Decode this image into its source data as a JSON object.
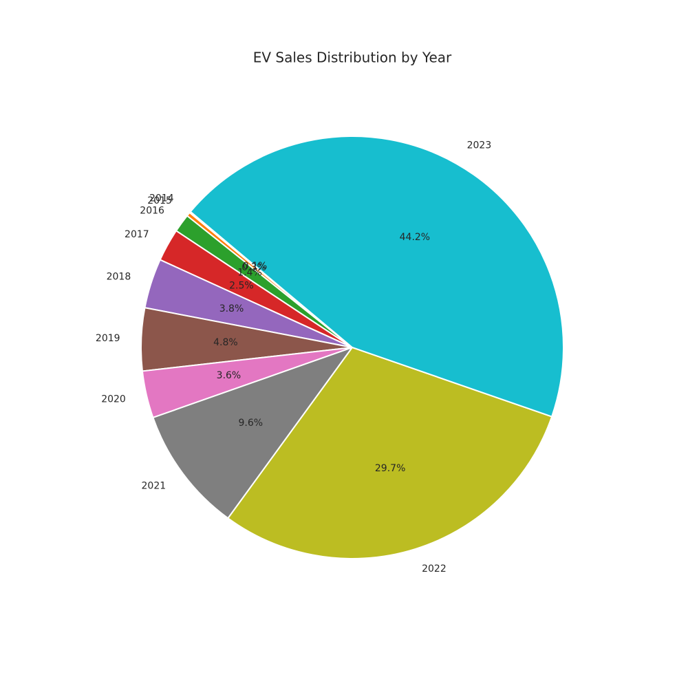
{
  "chart_data": {
    "type": "pie",
    "title": "EV Sales Distribution by Year",
    "categories": [
      "2014",
      "2015",
      "2016",
      "2017",
      "2018",
      "2019",
      "2020",
      "2021",
      "2022",
      "2023"
    ],
    "values": [
      0.1,
      0.3,
      1.4,
      2.5,
      3.8,
      4.8,
      3.6,
      9.6,
      29.7,
      44.2
    ],
    "value_labels": [
      "0.1%",
      "0.3%",
      "1.4%",
      "2.5%",
      "3.8%",
      "4.8%",
      "3.6%",
      "9.6%",
      "29.7%",
      "44.2%"
    ],
    "colors": [
      "#1f77b4",
      "#ff7f0e",
      "#2ca02c",
      "#d62728",
      "#9467bd",
      "#8c564b",
      "#e377c2",
      "#7f7f7f",
      "#bcbd22",
      "#17becf"
    ],
    "start_angle": 140
  }
}
